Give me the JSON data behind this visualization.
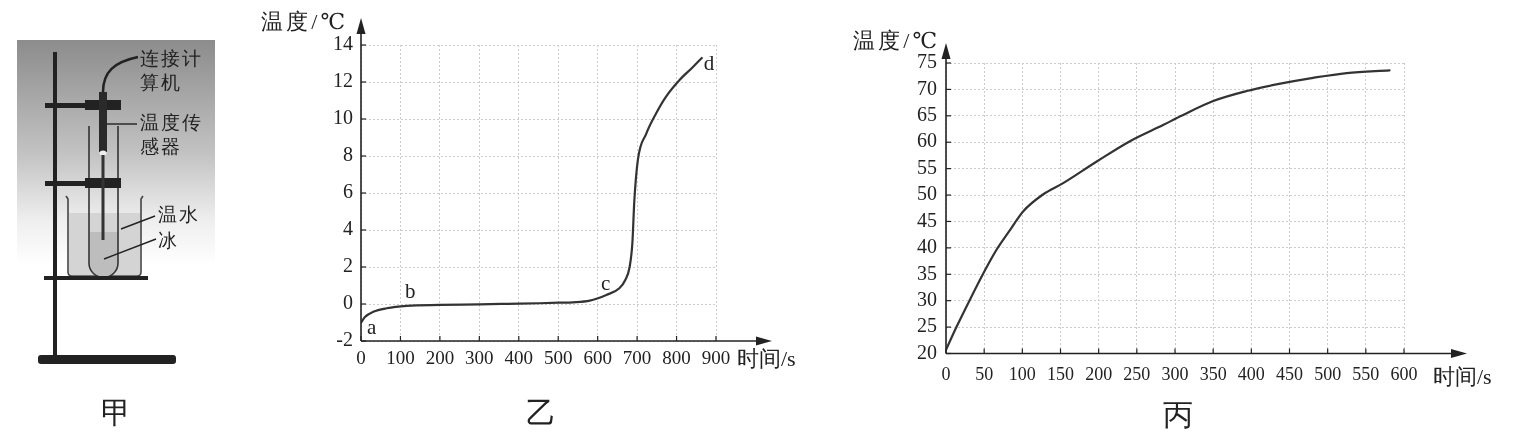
{
  "chart_data": [
    {
      "type": "other",
      "title": "甲",
      "annotations": [
        "连接计算机",
        "温度传感器",
        "温水",
        "冰"
      ]
    },
    {
      "type": "line",
      "title": "乙",
      "xlabel": "时间/s",
      "ylabel": "温度/℃",
      "x": [
        0,
        10,
        31,
        65,
        116,
        200,
        300,
        400,
        453,
        503,
        537,
        580,
        622,
        655,
        670,
        681,
        688,
        693,
        702,
        723,
        748,
        773,
        807,
        841,
        864
      ],
      "values": [
        -1.0,
        -0.7,
        -0.42,
        -0.23,
        -0.1,
        -0.05,
        -0.02,
        0.02,
        0.04,
        0.07,
        0.09,
        0.18,
        0.49,
        0.85,
        1.3,
        2.0,
        3.3,
        5.6,
        7.8,
        9.2,
        10.3,
        11.2,
        12.1,
        12.8,
        13.3
      ],
      "color": "#333333",
      "xlim": [
        0,
        900
      ],
      "ylim": [
        -2,
        14
      ],
      "xticks": [
        0,
        100,
        200,
        300,
        400,
        500,
        600,
        700,
        800,
        900
      ],
      "yticks": [
        -2,
        0,
        2,
        4,
        6,
        8,
        10,
        12,
        14
      ],
      "grid": true,
      "annotations": [
        {
          "text": "a",
          "x": 0,
          "y": -1.0
        },
        {
          "text": "b",
          "x": 125,
          "y": -0.1
        },
        {
          "text": "c",
          "x": 620,
          "y": 0.49
        },
        {
          "text": "d",
          "x": 864,
          "y": 13.3
        }
      ]
    },
    {
      "type": "line",
      "title": "丙",
      "xlabel": "时间/s",
      "ylabel": "温度/℃",
      "x": [
        0,
        14,
        31,
        49,
        66,
        84,
        101,
        127,
        154,
        198,
        241,
        285,
        307,
        350,
        394,
        438,
        481,
        525,
        581
      ],
      "values": [
        20.7,
        25.1,
        30.1,
        35.2,
        39.6,
        43.4,
        46.9,
        50.1,
        52.3,
        56.4,
        60.2,
        63.3,
        64.9,
        67.8,
        69.7,
        71.1,
        72.2,
        73.1,
        73.6
      ],
      "color": "#333333",
      "xlim": [
        0,
        600
      ],
      "ylim": [
        20,
        75
      ],
      "xticks": [
        0,
        50,
        100,
        150,
        200,
        250,
        300,
        350,
        400,
        450,
        500,
        550,
        600
      ],
      "yticks": [
        20,
        25,
        30,
        35,
        40,
        45,
        50,
        55,
        60,
        65,
        70,
        75
      ],
      "grid": true
    }
  ]
}
